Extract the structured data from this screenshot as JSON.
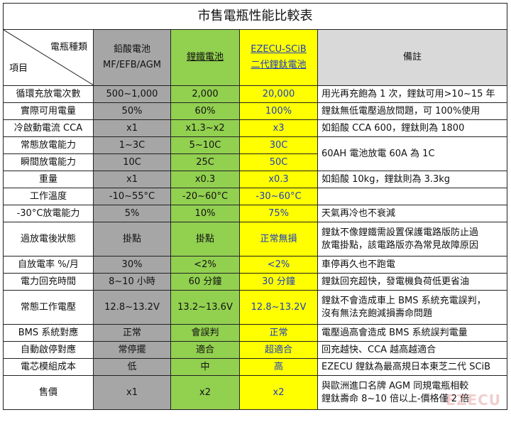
{
  "title": "市售電瓶性能比較表",
  "header": {
    "corner_top": "電瓶種類",
    "corner_bottom": "項目",
    "col1_line1": "鉛酸電池",
    "col1_line2": "MF/EFB/AGM",
    "col2": "鋰鐵電池",
    "col3_line1": "EZECU-SCiB",
    "col3_line2": "二代鋰鈦電池",
    "col4": "備註"
  },
  "rows": [
    {
      "label": "循環充放電次數",
      "c1": "500~1,000",
      "c2": "2,000",
      "c3": "20,000",
      "note": "用光再充飽為 1 次，鋰鈦可用>10~15 年"
    },
    {
      "label": "實際可用電量",
      "c1": "50%",
      "c2": "60%",
      "c3": "100%",
      "note": "鋰鈦無低電壓過放問題，可 100%使用"
    },
    {
      "label": "冷啟動電流 CCA",
      "c1": "x1",
      "c2": "x1.3~x2",
      "c3": "x3",
      "note": "如鉛酸 CCA 600，鋰鈦則為 1800"
    },
    {
      "label": "常態放電能力",
      "c1": "1~3C",
      "c2": "5~10C",
      "c3": "30C",
      "note": "60AH 電池放電 60A 為 1C"
    },
    {
      "label": "瞬間放電能力",
      "c1": "10C",
      "c2": "25C",
      "c3": "50C"
    },
    {
      "label": "重量",
      "c1": "x1",
      "c2": "x0.3",
      "c3": "x0.3",
      "note": "如鉛酸 10kg，鋰鈦則為 3.3kg"
    },
    {
      "label": "工作溫度",
      "c1": "-10~55°C",
      "c2": "-20~60°C",
      "c3": "-30~60°C",
      "note": ""
    },
    {
      "label": "-30°C放電能力",
      "c1": "5%",
      "c2": "10%",
      "c3": "75%",
      "note": "天氣再冷也不衰減"
    },
    {
      "label": "過放電後狀態",
      "c1": "掛點",
      "c2": "掛點",
      "c3": "正常無損",
      "note_line1": "鋰鈦不像鋰鐵需設置保護電路版防止過",
      "note_line2": "放電掛點，該電路版亦為常見故障原因"
    },
    {
      "label": "自放電率 %/月",
      "c1": "30%",
      "c2": "<2%",
      "c3": "<2%",
      "note": "車停再久也不跑電"
    },
    {
      "label": "電力回充時間",
      "c1": "8~10 小時",
      "c2": "60 分鐘",
      "c3": "30 分鐘",
      "note": "鋰鈦回充超快，發電機負荷低更省油"
    },
    {
      "label": "常態工作電壓",
      "c1": "12.8~13.2V",
      "c2": "13.2~13.6V",
      "c3": "12.8~13.2V",
      "note_line1": "鋰鈦不會造成車上 BMS 系統充電誤判，",
      "note_line2": "沒有無法充飽減損壽命問題"
    },
    {
      "label": "BMS 系統對應",
      "c1": "正常",
      "c2": "會誤判",
      "c3": "正常",
      "note": "電壓過高會造成 BMS 系統誤判電量"
    },
    {
      "label": "自動啟停對應",
      "c1": "常停擺",
      "c2": "適合",
      "c3": "超適合",
      "note": "回充越快、CCA 越高越適合"
    },
    {
      "label": "電芯模組成本",
      "c1": "低",
      "c2": "中",
      "c3": "高",
      "note": "EZECU 鋰鈦為最高規日本東芝二代 SCiB"
    },
    {
      "label": "售價",
      "c1": "x1",
      "c2": "x2",
      "c3": "x2",
      "note_line1": "與歐洲進口名牌 AGM 同規電瓶相較",
      "note_line2": "鋰鈦壽命 8~10 倍以上-價格僅 2 倍"
    }
  ],
  "watermark": "EZECU"
}
